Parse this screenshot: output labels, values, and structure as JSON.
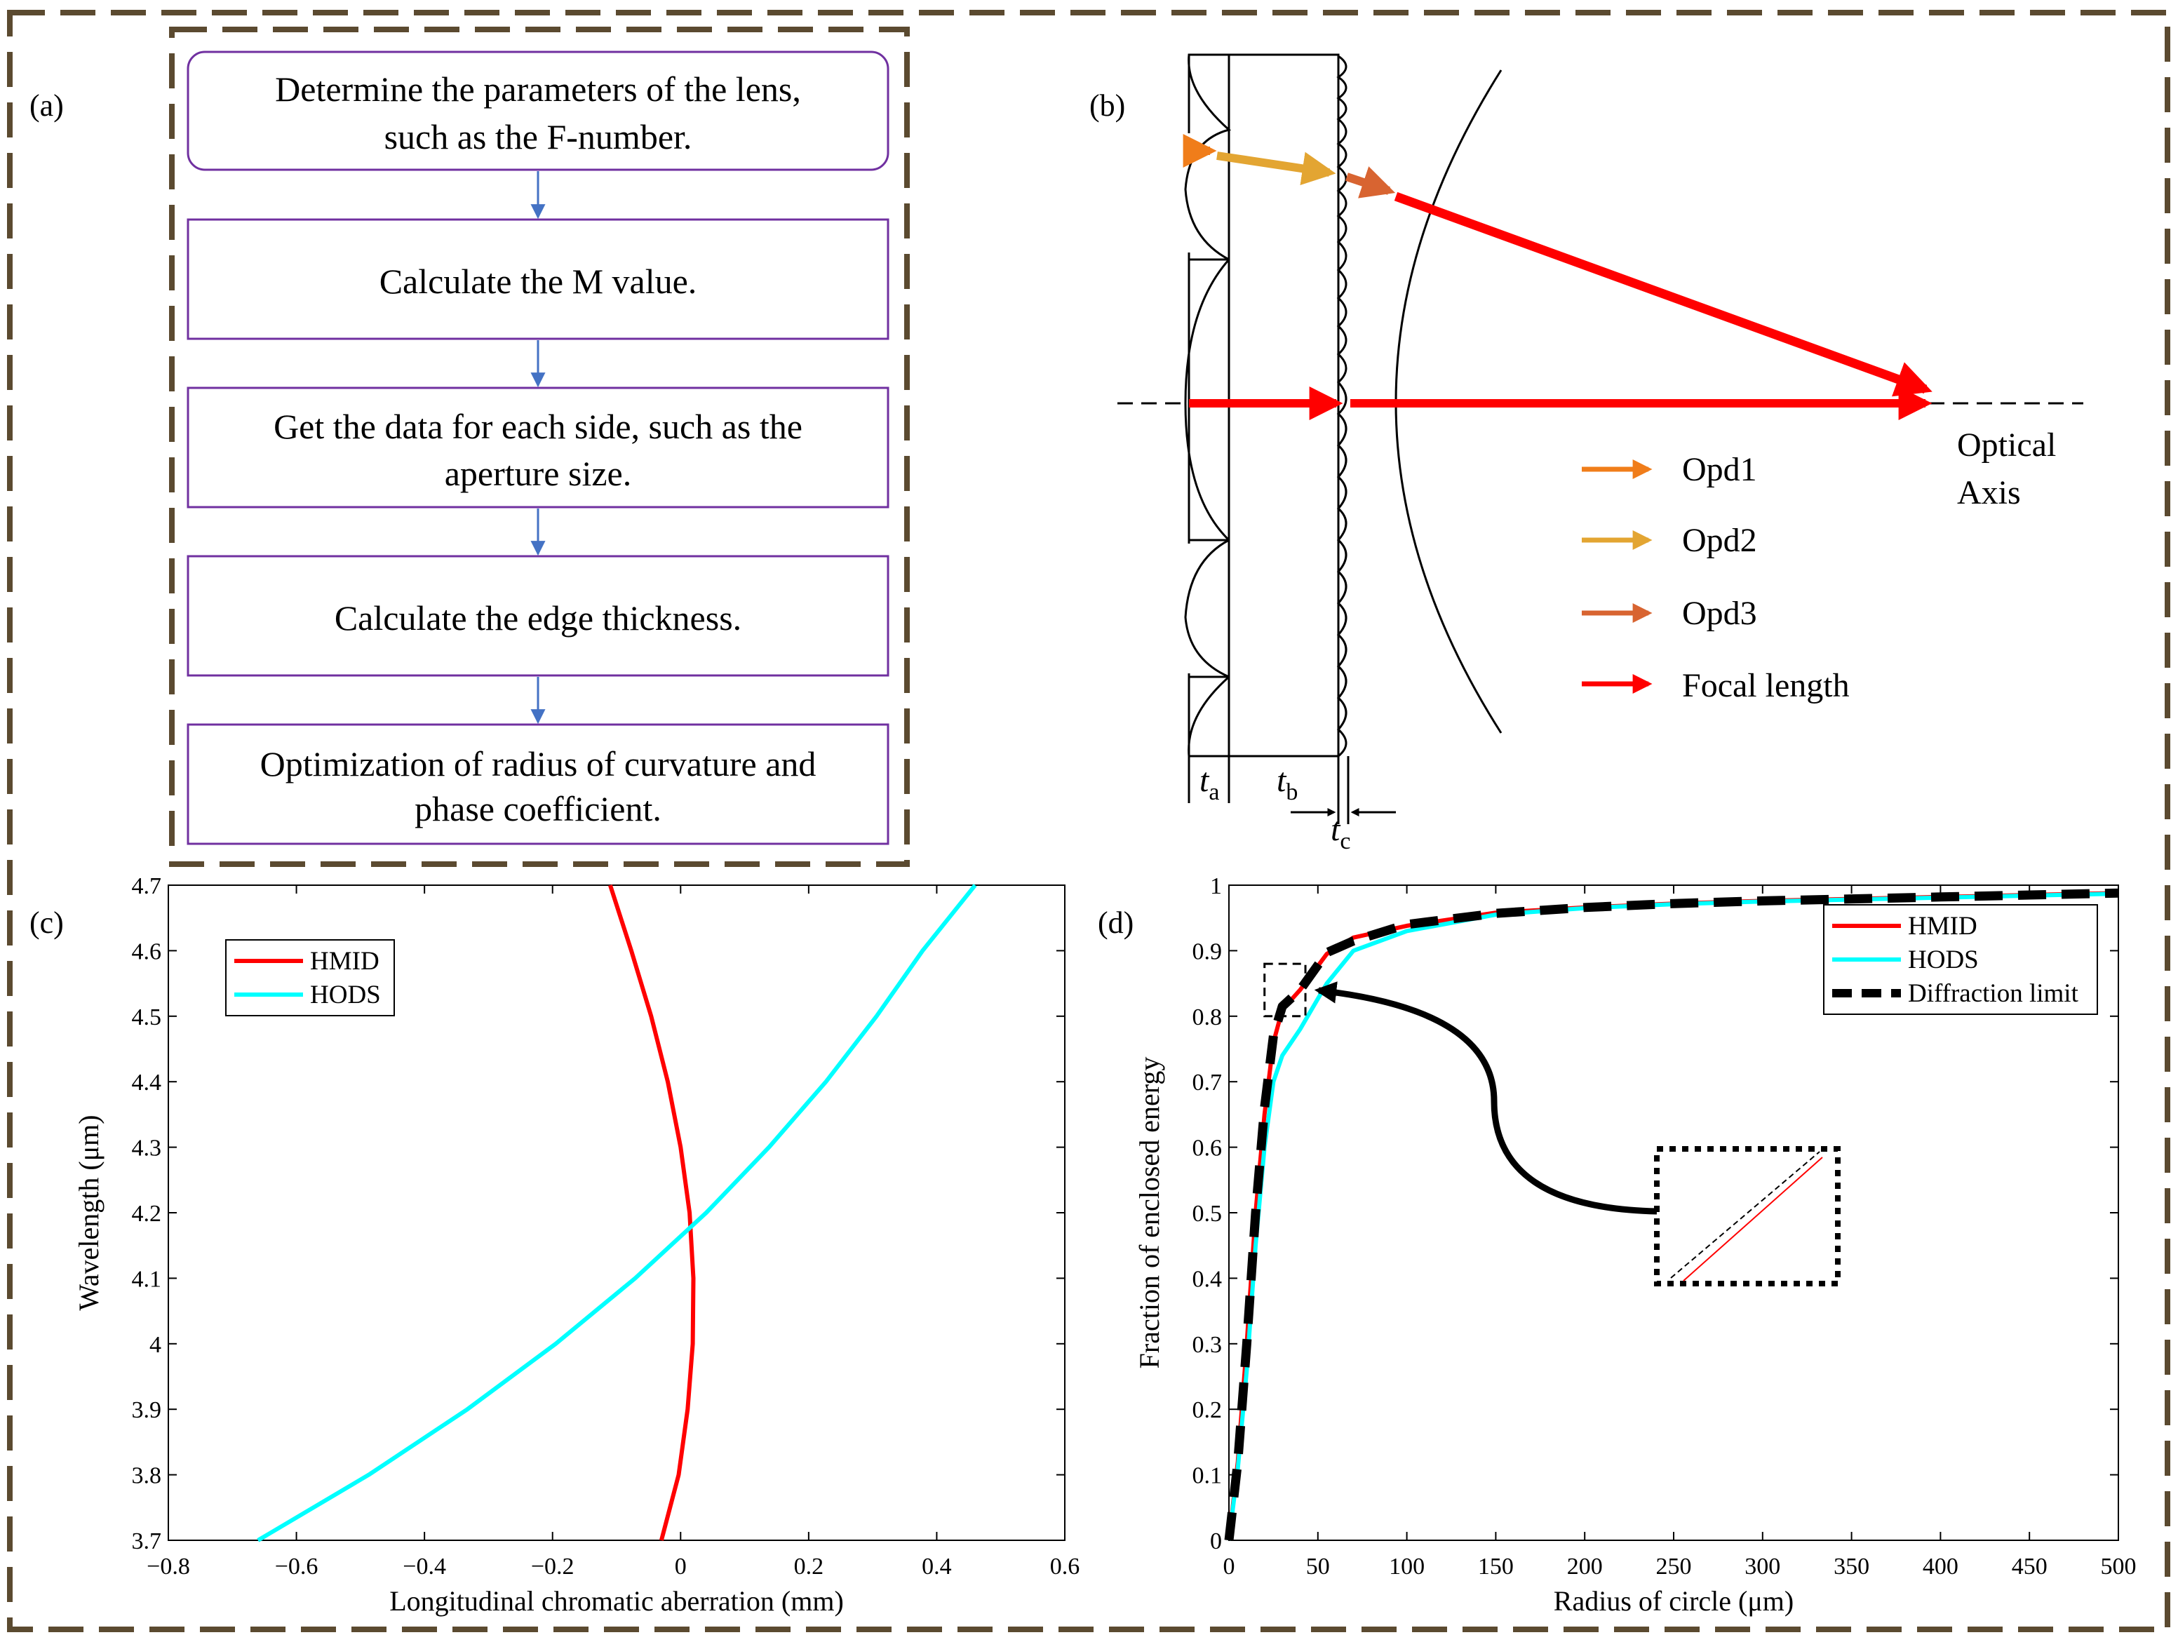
{
  "panel_labels": {
    "a": "(a)",
    "b": "(b)",
    "c": "(c)",
    "d": "(d)"
  },
  "colors": {
    "frame": "#5b4a30",
    "flow_box": "#7030a0",
    "flow_arrow": "#4472c4",
    "hmid": "#ff0000",
    "hods": "#00ffff",
    "diffraction": "#000000",
    "opd1": "#f07d1a",
    "opd2": "#e3a532",
    "opd3": "#d86431",
    "focal": "#ff0000"
  },
  "flowchart": {
    "steps": [
      {
        "line1": "Determine the parameters of the lens,",
        "line2": "such as the F-number."
      },
      {
        "line1": "Calculate the M value.",
        "line2": ""
      },
      {
        "line1": "Get the data for each side, such as the",
        "line2": "aperture size."
      },
      {
        "line1": "Calculate the edge thickness.",
        "line2": ""
      },
      {
        "line1": "Optimization of  radius of curvature and",
        "line2": "phase coefficient."
      }
    ]
  },
  "lens_diagram": {
    "legend": [
      "Opd1",
      "Opd2",
      "Opd3",
      "Focal length"
    ],
    "axis_label_line1": "Optical",
    "axis_label_line2": "Axis",
    "thickness_labels": [
      {
        "sym": "t",
        "sub": "a"
      },
      {
        "sym": "t",
        "sub": "b"
      },
      {
        "sym": "t",
        "sub": "c"
      }
    ]
  },
  "chart_data": [
    {
      "id": "c",
      "type": "line",
      "title": "",
      "xlabel": "Longitudinal chromatic aberration (mm)",
      "ylabel": "Wavelength (μm)",
      "xlim": [
        -0.8,
        0.6
      ],
      "ylim": [
        3.7,
        4.7
      ],
      "xticks": [
        "−0.8",
        "−0.6",
        "−0.4",
        "−0.2",
        "0",
        "0.2",
        "0.4",
        "0.6"
      ],
      "yticks": [
        "3.7",
        "3.8",
        "3.9",
        "4",
        "4.1",
        "4.2",
        "4.3",
        "4.4",
        "4.5",
        "4.6",
        "4.7"
      ],
      "legend_position": "top-left",
      "series": [
        {
          "name": "HMID",
          "color": "#ff0000",
          "x": [
            -0.03,
            -0.003,
            0.011,
            0.019,
            0.02,
            0.014,
            0.0,
            -0.02,
            -0.046,
            -0.077,
            -0.11
          ],
          "y": [
            3.7,
            3.8,
            3.9,
            4.0,
            4.1,
            4.2,
            4.3,
            4.4,
            4.5,
            4.6,
            4.7
          ]
        },
        {
          "name": "HODS",
          "color": "#00ffff",
          "x": [
            -0.66,
            -0.487,
            -0.333,
            -0.195,
            -0.071,
            0.04,
            0.138,
            0.227,
            0.306,
            0.378,
            0.46
          ],
          "y": [
            3.7,
            3.8,
            3.9,
            4.0,
            4.1,
            4.2,
            4.3,
            4.4,
            4.5,
            4.6,
            4.7
          ]
        }
      ]
    },
    {
      "id": "d",
      "type": "line",
      "title": "",
      "xlabel": "Radius of circle (μm)",
      "ylabel": "Fraction of enclosed energy",
      "xlim": [
        0,
        500
      ],
      "ylim": [
        0,
        1
      ],
      "xticks": [
        "0",
        "50",
        "100",
        "150",
        "200",
        "250",
        "300",
        "350",
        "400",
        "450",
        "500"
      ],
      "yticks": [
        "0",
        "0.1",
        "0.2",
        "0.3",
        "0.4",
        "0.5",
        "0.6",
        "0.7",
        "0.8",
        "0.9",
        "1"
      ],
      "legend_position": "top-right",
      "series": [
        {
          "name": "HMID",
          "color": "#ff0000",
          "x": [
            0,
            5,
            10,
            15,
            20,
            25,
            30,
            40,
            55,
            70,
            100,
            150,
            200,
            250,
            300,
            350,
            400,
            450,
            500
          ],
          "y": [
            0,
            0.12,
            0.3,
            0.5,
            0.65,
            0.76,
            0.81,
            0.84,
            0.895,
            0.92,
            0.938,
            0.958,
            0.966,
            0.972,
            0.976,
            0.979,
            0.982,
            0.985,
            0.988
          ]
        },
        {
          "name": "HODS",
          "color": "#00ffff",
          "x": [
            0,
            5,
            10,
            15,
            20,
            25,
            30,
            40,
            55,
            70,
            100,
            150,
            200,
            250,
            300,
            350,
            400,
            450,
            500
          ],
          "y": [
            0,
            0.11,
            0.26,
            0.45,
            0.6,
            0.7,
            0.74,
            0.78,
            0.85,
            0.9,
            0.93,
            0.955,
            0.965,
            0.971,
            0.975,
            0.978,
            0.981,
            0.984,
            0.987
          ]
        },
        {
          "name": "Diffraction limit",
          "color": "#000000",
          "dashed": true,
          "x": [
            0,
            5,
            10,
            15,
            20,
            25,
            30,
            40,
            55,
            70,
            100,
            150,
            200,
            250,
            300,
            350,
            400,
            450,
            500
          ],
          "y": [
            0,
            0.12,
            0.3,
            0.5,
            0.66,
            0.77,
            0.815,
            0.84,
            0.897,
            0.915,
            0.94,
            0.957,
            0.966,
            0.972,
            0.976,
            0.979,
            0.982,
            0.985,
            0.988
          ]
        }
      ]
    }
  ]
}
